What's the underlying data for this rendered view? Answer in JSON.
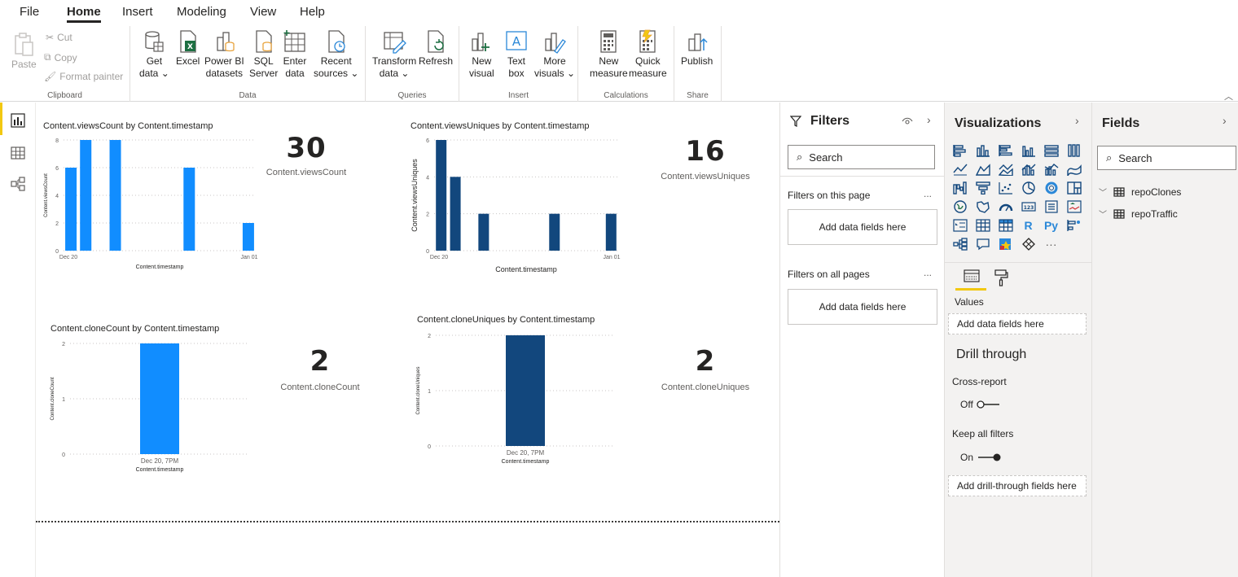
{
  "menu": {
    "items": [
      "File",
      "Home",
      "Insert",
      "Modeling",
      "View",
      "Help"
    ],
    "active": "Home"
  },
  "ribbon": {
    "clipboard": {
      "paste": "Paste",
      "cut": "Cut",
      "copy": "Copy",
      "format_painter": "Format painter",
      "label": "Clipboard"
    },
    "data": {
      "get_data_1": "Get",
      "get_data_2": "data ⌄",
      "excel": "Excel",
      "pbi_1": "Power BI",
      "pbi_2": "datasets",
      "sql_1": "SQL",
      "sql_2": "Server",
      "enter_1": "Enter",
      "enter_2": "data",
      "recent_1": "Recent",
      "recent_2": "sources ⌄",
      "label": "Data"
    },
    "queries": {
      "transform_1": "Transform",
      "transform_2": "data ⌄",
      "refresh": "Refresh",
      "label": "Queries"
    },
    "insert": {
      "new_visual_1": "New",
      "new_visual_2": "visual",
      "text_box_1": "Text",
      "text_box_2": "box",
      "more_visuals_1": "More",
      "more_visuals_2": "visuals ⌄",
      "label": "Insert"
    },
    "calculations": {
      "new_measure_1": "New",
      "new_measure_2": "measure",
      "quick_measure_1": "Quick",
      "quick_measure_2": "measure",
      "label": "Calculations"
    },
    "share": {
      "publish": "Publish",
      "label": "Share"
    }
  },
  "canvas": {
    "visuals": [
      {
        "title": "Content.viewsCount by Content.timestamp",
        "kpi_value": "30",
        "kpi_label": "Content.viewsCount"
      },
      {
        "title": "Content.viewsUniques by Content.timestamp",
        "kpi_value": "16",
        "kpi_label": "Content.viewsUniques"
      },
      {
        "title": "Content.cloneCount by Content.timestamp",
        "kpi_value": "2",
        "kpi_label": "Content.cloneCount"
      },
      {
        "title": "Content.cloneUniques by Content.timestamp",
        "kpi_value": "2",
        "kpi_label": "Content.cloneUniques"
      }
    ]
  },
  "chart_data": [
    {
      "type": "bar",
      "title": "Content.viewsCount by Content.timestamp",
      "xlabel": "Content.timestamp",
      "ylabel": "Content.viewsCount",
      "x_tick_labels": [
        "Dec 20",
        "Jan 01"
      ],
      "y_ticks": [
        0,
        2,
        4,
        6,
        8
      ],
      "ylim": [
        0,
        8
      ],
      "xlim": [
        0,
        13
      ],
      "x": [
        0.5,
        1.5,
        3.5,
        8.5,
        12.5
      ],
      "values": [
        6,
        8,
        8,
        6,
        2
      ],
      "color": "#118dff"
    },
    {
      "type": "bar",
      "title": "Content.viewsUniques by Content.timestamp",
      "xlabel": "Content.timestamp",
      "ylabel": "Content.viewsUniques",
      "x_tick_labels": [
        "Dec 20",
        "Jan 01"
      ],
      "y_ticks": [
        0,
        2,
        4,
        6
      ],
      "ylim": [
        0,
        6
      ],
      "xlim": [
        0,
        13
      ],
      "x": [
        0.5,
        1.5,
        3.5,
        8.5,
        12.5
      ],
      "values": [
        6,
        4,
        2,
        2,
        2
      ],
      "color": "#12477d"
    },
    {
      "type": "bar",
      "title": "Content.cloneCount by Content.timestamp",
      "xlabel": "Content.timestamp",
      "ylabel": "Content.cloneCount",
      "categories": [
        "Dec 20, 7PM"
      ],
      "y_ticks": [
        0,
        1,
        2
      ],
      "ylim": [
        0,
        2
      ],
      "values": [
        2
      ],
      "color": "#118dff"
    },
    {
      "type": "bar",
      "title": "Content.cloneUniques by Content.timestamp",
      "xlabel": "Content.timestamp",
      "ylabel": "Content.cloneUniques",
      "categories": [
        "Dec 20, 7PM"
      ],
      "y_ticks": [
        0,
        1,
        2
      ],
      "ylim": [
        0,
        2
      ],
      "values": [
        2
      ],
      "color": "#12477d"
    }
  ],
  "filters": {
    "title": "Filters",
    "search_placeholder": "Search",
    "on_this_page": "Filters on this page",
    "on_all_pages": "Filters on all pages",
    "add_fields_page": "Add data fields here",
    "add_fields_all": "Add data fields here",
    "more": "..."
  },
  "visualizations": {
    "title": "Visualizations",
    "values_label": "Values",
    "add_values": "Add data fields here",
    "drill_through": "Drill through",
    "cross_report": "Cross-report",
    "cross_report_state": "Off",
    "keep_all_filters": "Keep all filters",
    "keep_all_filters_state": "On",
    "add_drill": "Add drill-through fields here",
    "r_label": "R",
    "py_label": "Py",
    "more_visuals": "···"
  },
  "fields": {
    "title": "Fields",
    "search_placeholder": "Search",
    "tables": [
      "repoClones",
      "repoTraffic"
    ]
  },
  "colors": {
    "accent": "#f2c811",
    "bar_light": "#118dff",
    "bar_dark": "#12477d"
  }
}
